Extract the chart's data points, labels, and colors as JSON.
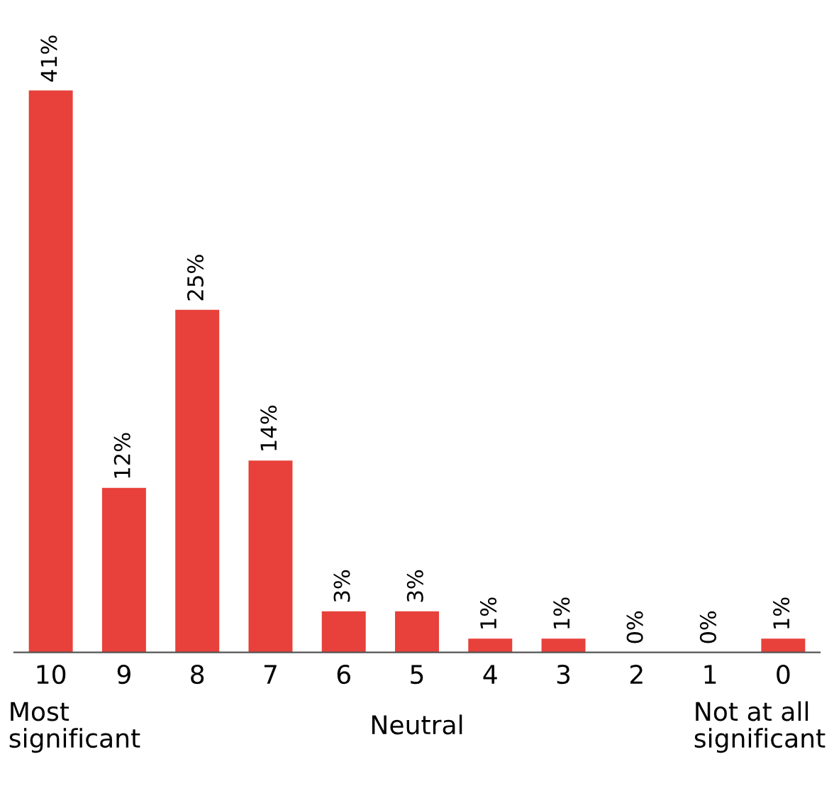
{
  "chart_data": {
    "type": "bar",
    "categories": [
      "10",
      "9",
      "8",
      "7",
      "6",
      "5",
      "4",
      "3",
      "2",
      "1",
      "0"
    ],
    "values": [
      41,
      12,
      25,
      14,
      3,
      3,
      1,
      1,
      0,
      0,
      1
    ],
    "value_labels": [
      "41%",
      "12%",
      "25%",
      "14%",
      "3%",
      "3%",
      "1%",
      "1%",
      "0%",
      "0%",
      "1%"
    ],
    "color": "#e8403a",
    "tick_labels": "x",
    "grid": false,
    "annotations": [
      "Most\nsignificant",
      "Neutral",
      "Not at all\nsignificant"
    ]
  }
}
